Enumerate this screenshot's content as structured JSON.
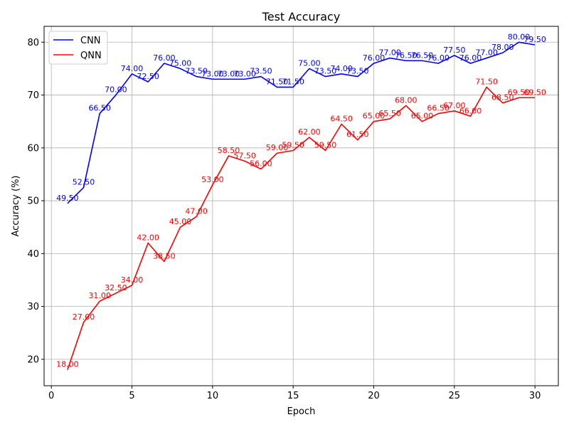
{
  "chart_data": {
    "type": "line",
    "title": "Test Accuracy",
    "xlabel": "Epoch",
    "ylabel": "Accuracy (%)",
    "xlim": [
      -0.45,
      31.45
    ],
    "ylim": [
      15,
      83
    ],
    "xticks": [
      0,
      5,
      10,
      15,
      20,
      25,
      30
    ],
    "yticks": [
      20,
      30,
      40,
      50,
      60,
      70,
      80
    ],
    "grid": true,
    "legend_position": "top-left",
    "x": [
      1,
      2,
      3,
      4,
      5,
      6,
      7,
      8,
      9,
      10,
      11,
      12,
      13,
      14,
      15,
      16,
      17,
      18,
      19,
      20,
      21,
      22,
      23,
      24,
      25,
      26,
      27,
      28,
      29,
      30
    ],
    "series": [
      {
        "name": "CNN",
        "color": "#0000ff",
        "values": [
          49.5,
          52.5,
          66.5,
          70.0,
          74.0,
          72.5,
          76.0,
          75.0,
          73.5,
          73.0,
          73.0,
          73.0,
          73.5,
          71.5,
          71.5,
          75.0,
          73.5,
          74.0,
          73.5,
          76.0,
          77.0,
          76.5,
          76.5,
          76.0,
          77.5,
          76.0,
          77.0,
          78.0,
          80.0,
          79.5
        ],
        "labels": [
          "49.50",
          "52.50",
          "66.50",
          "70.00",
          "74.00",
          "72.50",
          "76.00",
          "75.00",
          "73.50",
          "73.00",
          "73.00",
          "73.00",
          "73.50",
          "71.50",
          "71.50",
          "75.00",
          "73.50",
          "74.00",
          "73.50",
          "76.00",
          "77.00",
          "76.50",
          "76.50",
          "76.00",
          "77.50",
          "76.00",
          "77.00",
          "78.00",
          "80.00",
          "79.50"
        ]
      },
      {
        "name": "QNN",
        "color": "#ff0000",
        "values": [
          18.0,
          27.0,
          31.0,
          32.5,
          34.0,
          42.0,
          38.5,
          45.0,
          47.0,
          53.0,
          58.5,
          57.5,
          56.0,
          59.0,
          59.5,
          62.0,
          59.5,
          64.5,
          61.5,
          65.0,
          65.5,
          68.0,
          65.0,
          66.5,
          67.0,
          66.0,
          71.5,
          68.5,
          69.5,
          69.5
        ],
        "labels": [
          "18.00",
          "27.00",
          "31.00",
          "32.50",
          "34.00",
          "42.00",
          "38.50",
          "45.00",
          "47.00",
          "53.00",
          "58.50",
          "57.50",
          "56.00",
          "59.00",
          "59.50",
          "62.00",
          "59.50",
          "64.50",
          "61.50",
          "65.00",
          "65.50",
          "68.00",
          "65.00",
          "66.50",
          "67.00",
          "66.00",
          "71.50",
          "68.50",
          "69.50",
          "69.50"
        ]
      }
    ]
  }
}
